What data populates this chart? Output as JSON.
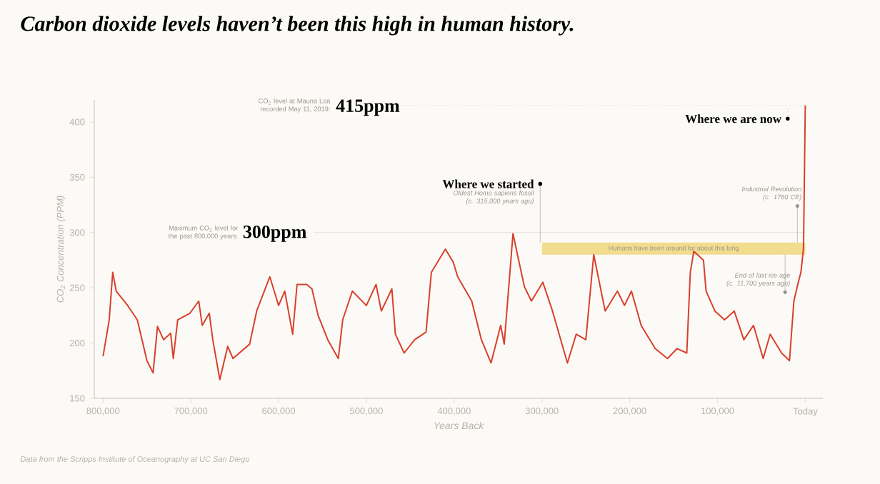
{
  "chart_data": {
    "type": "line",
    "title": "Carbon dioxide levels haven’t been this high in human history.",
    "xlabel": "Years Back",
    "ylabel": "CO$_{2}$ Concentration (PPM)",
    "x": [
      800000,
      793000,
      789000,
      785000,
      772000,
      761000,
      750000,
      743000,
      738000,
      731000,
      723000,
      720000,
      715000,
      701000,
      691000,
      687000,
      679000,
      675000,
      667000,
      658000,
      652000,
      633000,
      625000,
      610000,
      600000,
      593000,
      584000,
      579000,
      568000,
      562000,
      555000,
      544000,
      532000,
      527000,
      516000,
      500000,
      489000,
      483000,
      471000,
      467000,
      457000,
      445000,
      432000,
      426000,
      410000,
      401000,
      396000,
      380000,
      369000,
      358000,
      347000,
      343000,
      333000,
      326000,
      320000,
      312000,
      299000,
      288000,
      271000,
      261000,
      250000,
      241000,
      228000,
      214000,
      206000,
      198000,
      187000,
      171000,
      157000,
      146000,
      135000,
      131000,
      127000,
      116000,
      113000,
      103000,
      92000,
      81000,
      70000,
      59000,
      48000,
      40000,
      27000,
      18000,
      13000,
      8000,
      5000,
      2000,
      0
    ],
    "values": [
      188,
      221,
      264,
      247,
      234,
      221,
      184,
      173,
      215,
      203,
      209,
      186,
      221,
      227,
      238,
      216,
      227,
      203,
      167,
      197,
      186,
      199,
      229,
      260,
      234,
      247,
      208,
      253,
      253,
      249,
      225,
      203,
      186,
      221,
      247,
      234,
      253,
      229,
      249,
      208,
      191,
      203,
      210,
      264,
      285,
      273,
      260,
      238,
      203,
      182,
      216,
      199,
      299,
      273,
      251,
      238,
      255,
      229,
      182,
      208,
      203,
      280,
      229,
      247,
      234,
      247,
      216,
      195,
      186,
      195,
      191,
      264,
      283,
      275,
      247,
      229,
      221,
      229,
      203,
      216,
      186,
      208,
      191,
      184,
      238,
      255,
      264,
      286,
      415
    ],
    "color": "#d8402c",
    "xlim": [
      810000,
      -20000
    ],
    "xticks": [
      {
        "value": 800000,
        "label": "800,000"
      },
      {
        "value": 700000,
        "label": "700,000"
      },
      {
        "value": 600000,
        "label": "600,000"
      },
      {
        "value": 500000,
        "label": "500,000"
      },
      {
        "value": 400000,
        "label": "400,000"
      },
      {
        "value": 300000,
        "label": "300,000"
      },
      {
        "value": 200000,
        "label": "200,000"
      },
      {
        "value": 100000,
        "label": "100,000"
      },
      {
        "value": 0,
        "label": "Today"
      }
    ],
    "ylim": [
      150,
      420
    ],
    "yticks": [
      150,
      200,
      250,
      300,
      350,
      400
    ],
    "ref_lines": [
      {
        "axis": "y",
        "value": 300,
        "color": "#e4dfd8",
        "line_style": "solid"
      },
      {
        "axis": "y",
        "value": 415,
        "color": "#cfcac3",
        "line_style": "dotted"
      }
    ],
    "bands": [
      {
        "axis": "x",
        "from": 300000,
        "to": 0,
        "label": "Humans have been around for about this long",
        "color": "#f2dc8e"
      }
    ],
    "annotations": [
      "CO$_{2}$ level at Mauna Loa recorded May 11, 2019:",
      "415ppm",
      "Maximum CO$_{2}$ level for the past 800,000 years:",
      "300ppm",
      "Where we started",
      "Oldest Homo sapiens fossil (c. 315,000 years ago)",
      "Where we are now",
      "Industrial Revolution (c. 1760 CE)",
      "End of last ice age (c. 11,700 years ago)",
      "Data from the Scripps Institute of Oceanography at UC San Diego"
    ]
  }
}
